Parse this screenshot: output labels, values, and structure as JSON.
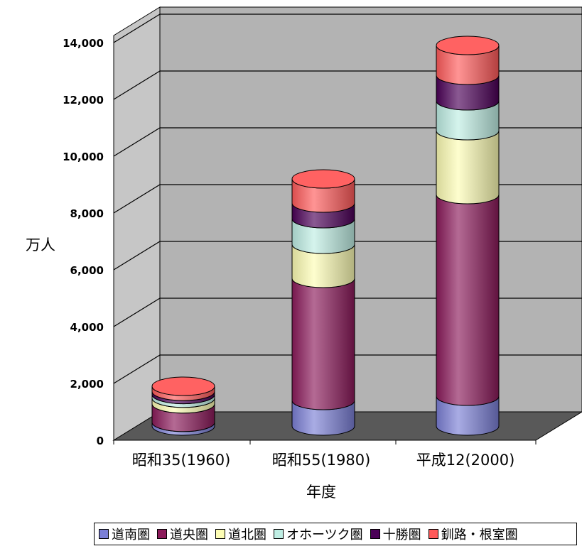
{
  "chart_data": {
    "type": "bar",
    "stacked": true,
    "style": "3d-cylinder",
    "categories": [
      "昭和35(1960)",
      "昭和55(1980)",
      "平成12(2000)"
    ],
    "series": [
      {
        "name": "道南圏",
        "color": "#7b7fd6",
        "values": [
          130,
          900,
          1050
        ]
      },
      {
        "name": "道央圏",
        "color": "#8b1a5a",
        "values": [
          650,
          4300,
          7100
        ]
      },
      {
        "name": "道北圏",
        "color": "#fdfdb4",
        "values": [
          200,
          1200,
          2250
        ]
      },
      {
        "name": "オホーツク圏",
        "color": "#bfeee4",
        "values": [
          130,
          900,
          1050
        ]
      },
      {
        "name": "十勝圏",
        "color": "#4b0057",
        "values": [
          110,
          550,
          900
        ]
      },
      {
        "name": "釧路・根室圏",
        "color": "#ff5a5a",
        "values": [
          180,
          850,
          1050
        ]
      }
    ],
    "xlabel": "年度",
    "ylabel": "万人",
    "ylim": [
      0,
      14000
    ],
    "yticks": [
      "0",
      "2,000",
      "4,000",
      "6,000",
      "8,000",
      "10,000",
      "12,000",
      "14,000"
    ],
    "grid": true,
    "legend_position": "bottom"
  }
}
